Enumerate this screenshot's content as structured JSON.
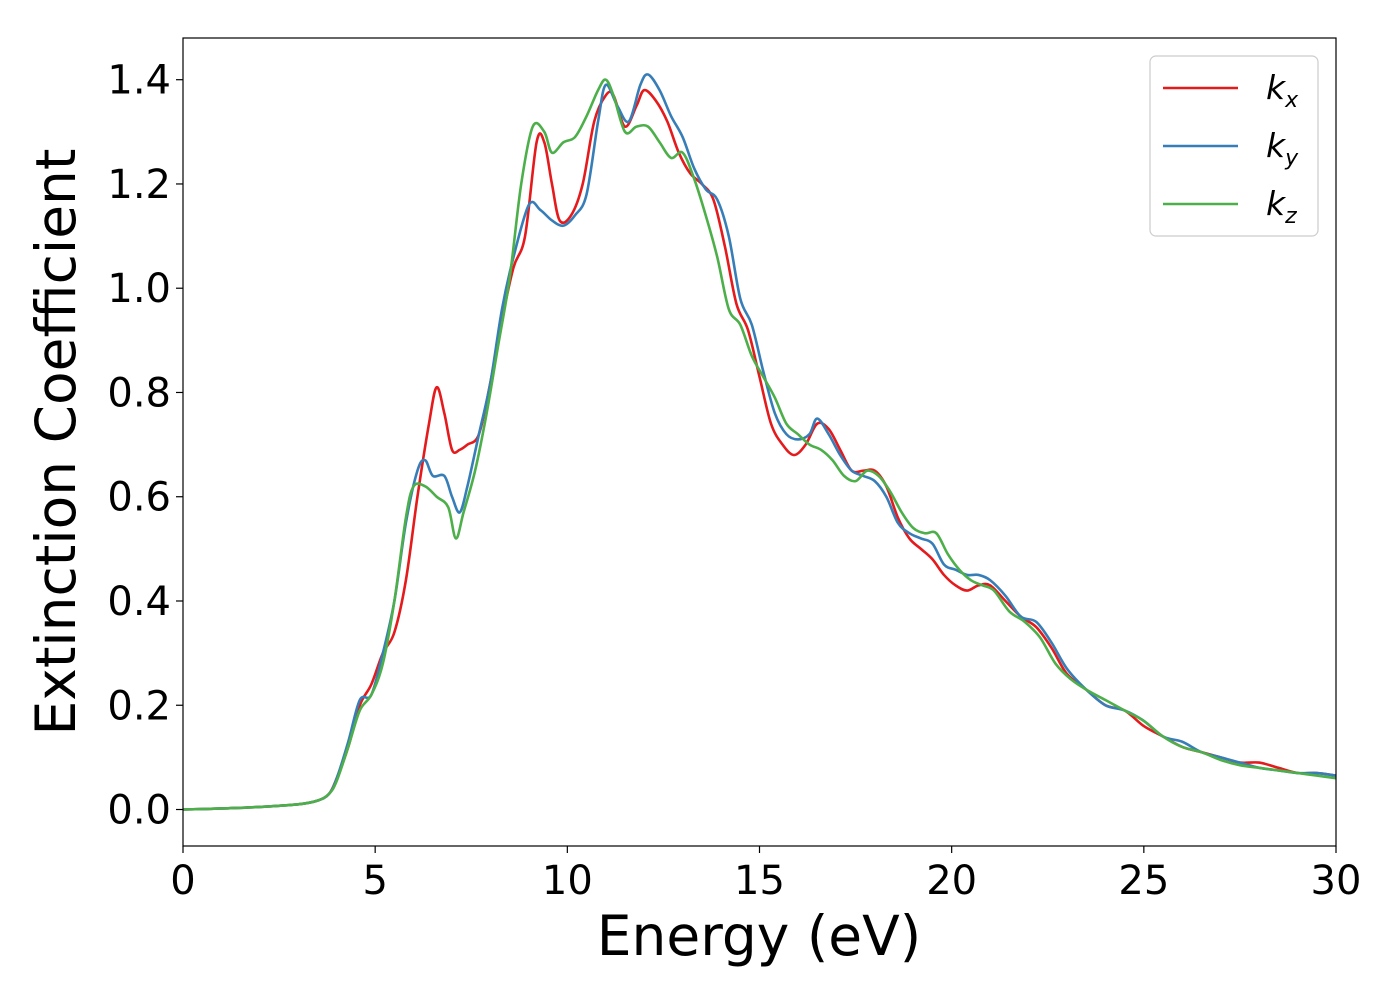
{
  "chart_data": {
    "type": "line",
    "xlabel": "Energy (eV)",
    "ylabel": "Extinction Coefficient",
    "xlim": [
      0,
      30
    ],
    "ylim": [
      -0.07,
      1.48
    ],
    "x_ticks": [
      "0",
      "5",
      "10",
      "15",
      "20",
      "25",
      "30"
    ],
    "y_ticks": [
      "0.0",
      "0.2",
      "0.4",
      "0.6",
      "0.8",
      "1.0",
      "1.2",
      "1.4"
    ],
    "grid": false,
    "legend_position": "top-right",
    "series": [
      {
        "name": "k_x",
        "label_base": "k",
        "label_sub": "x",
        "color": "#e41a1c",
        "points": [
          [
            0,
            0
          ],
          [
            1,
            0.002
          ],
          [
            2,
            0.005
          ],
          [
            3,
            0.01
          ],
          [
            3.5,
            0.017
          ],
          [
            3.8,
            0.03
          ],
          [
            4,
            0.06
          ],
          [
            4.3,
            0.12
          ],
          [
            4.6,
            0.2
          ],
          [
            4.9,
            0.24
          ],
          [
            5.2,
            0.3
          ],
          [
            5.5,
            0.34
          ],
          [
            5.8,
            0.44
          ],
          [
            6.1,
            0.6
          ],
          [
            6.4,
            0.74
          ],
          [
            6.6,
            0.81
          ],
          [
            6.8,
            0.76
          ],
          [
            7,
            0.69
          ],
          [
            7.2,
            0.69
          ],
          [
            7.4,
            0.7
          ],
          [
            7.7,
            0.72
          ],
          [
            8,
            0.82
          ],
          [
            8.3,
            0.94
          ],
          [
            8.6,
            1.04
          ],
          [
            8.9,
            1.1
          ],
          [
            9.2,
            1.28
          ],
          [
            9.4,
            1.28
          ],
          [
            9.6,
            1.2
          ],
          [
            9.8,
            1.13
          ],
          [
            10.1,
            1.14
          ],
          [
            10.4,
            1.2
          ],
          [
            10.7,
            1.32
          ],
          [
            11,
            1.37
          ],
          [
            11.2,
            1.37
          ],
          [
            11.5,
            1.31
          ],
          [
            11.8,
            1.35
          ],
          [
            12,
            1.38
          ],
          [
            12.3,
            1.36
          ],
          [
            12.6,
            1.32
          ],
          [
            12.9,
            1.26
          ],
          [
            13.2,
            1.22
          ],
          [
            13.5,
            1.2
          ],
          [
            13.8,
            1.17
          ],
          [
            14.1,
            1.08
          ],
          [
            14.4,
            0.97
          ],
          [
            14.7,
            0.92
          ],
          [
            15,
            0.83
          ],
          [
            15.3,
            0.74
          ],
          [
            15.6,
            0.7
          ],
          [
            15.9,
            0.68
          ],
          [
            16.2,
            0.7
          ],
          [
            16.5,
            0.74
          ],
          [
            16.8,
            0.73
          ],
          [
            17.1,
            0.69
          ],
          [
            17.4,
            0.65
          ],
          [
            17.7,
            0.65
          ],
          [
            18,
            0.65
          ],
          [
            18.3,
            0.62
          ],
          [
            18.6,
            0.56
          ],
          [
            18.9,
            0.52
          ],
          [
            19.2,
            0.5
          ],
          [
            19.5,
            0.48
          ],
          [
            19.8,
            0.45
          ],
          [
            20.1,
            0.43
          ],
          [
            20.4,
            0.42
          ],
          [
            20.7,
            0.43
          ],
          [
            21,
            0.43
          ],
          [
            21.4,
            0.4
          ],
          [
            21.8,
            0.37
          ],
          [
            22.2,
            0.35
          ],
          [
            22.6,
            0.31
          ],
          [
            23,
            0.26
          ],
          [
            23.5,
            0.23
          ],
          [
            24,
            0.2
          ],
          [
            24.5,
            0.19
          ],
          [
            25,
            0.16
          ],
          [
            25.5,
            0.14
          ],
          [
            26,
            0.12
          ],
          [
            26.5,
            0.11
          ],
          [
            27,
            0.1
          ],
          [
            27.5,
            0.09
          ],
          [
            28,
            0.09
          ],
          [
            28.5,
            0.08
          ],
          [
            29,
            0.07
          ],
          [
            29.5,
            0.07
          ],
          [
            30,
            0.065
          ]
        ]
      },
      {
        "name": "k_y",
        "label_base": "k",
        "label_sub": "y",
        "color": "#377eb8",
        "points": [
          [
            0,
            0
          ],
          [
            1,
            0.002
          ],
          [
            2,
            0.005
          ],
          [
            3,
            0.01
          ],
          [
            3.5,
            0.017
          ],
          [
            3.8,
            0.03
          ],
          [
            4,
            0.06
          ],
          [
            4.3,
            0.13
          ],
          [
            4.6,
            0.21
          ],
          [
            4.9,
            0.22
          ],
          [
            5.2,
            0.3
          ],
          [
            5.5,
            0.4
          ],
          [
            5.8,
            0.55
          ],
          [
            6.1,
            0.65
          ],
          [
            6.3,
            0.67
          ],
          [
            6.5,
            0.64
          ],
          [
            6.8,
            0.64
          ],
          [
            7,
            0.6
          ],
          [
            7.2,
            0.57
          ],
          [
            7.4,
            0.62
          ],
          [
            7.7,
            0.72
          ],
          [
            8,
            0.82
          ],
          [
            8.3,
            0.96
          ],
          [
            8.6,
            1.06
          ],
          [
            9,
            1.16
          ],
          [
            9.3,
            1.15
          ],
          [
            9.6,
            1.13
          ],
          [
            9.9,
            1.12
          ],
          [
            10.2,
            1.14
          ],
          [
            10.5,
            1.18
          ],
          [
            10.8,
            1.32
          ],
          [
            11,
            1.39
          ],
          [
            11.3,
            1.35
          ],
          [
            11.6,
            1.32
          ],
          [
            11.9,
            1.39
          ],
          [
            12.1,
            1.41
          ],
          [
            12.4,
            1.38
          ],
          [
            12.7,
            1.33
          ],
          [
            13,
            1.29
          ],
          [
            13.3,
            1.23
          ],
          [
            13.6,
            1.19
          ],
          [
            13.9,
            1.17
          ],
          [
            14.2,
            1.1
          ],
          [
            14.5,
            0.98
          ],
          [
            14.8,
            0.93
          ],
          [
            15.1,
            0.84
          ],
          [
            15.4,
            0.76
          ],
          [
            15.7,
            0.72
          ],
          [
            16,
            0.71
          ],
          [
            16.3,
            0.72
          ],
          [
            16.5,
            0.75
          ],
          [
            16.8,
            0.72
          ],
          [
            17.1,
            0.68
          ],
          [
            17.4,
            0.65
          ],
          [
            17.7,
            0.64
          ],
          [
            18,
            0.63
          ],
          [
            18.3,
            0.6
          ],
          [
            18.6,
            0.55
          ],
          [
            18.9,
            0.53
          ],
          [
            19.2,
            0.52
          ],
          [
            19.5,
            0.51
          ],
          [
            19.8,
            0.47
          ],
          [
            20.1,
            0.46
          ],
          [
            20.4,
            0.45
          ],
          [
            20.7,
            0.45
          ],
          [
            21,
            0.44
          ],
          [
            21.4,
            0.41
          ],
          [
            21.8,
            0.37
          ],
          [
            22.2,
            0.36
          ],
          [
            22.6,
            0.32
          ],
          [
            23,
            0.27
          ],
          [
            23.5,
            0.23
          ],
          [
            24,
            0.2
          ],
          [
            24.5,
            0.19
          ],
          [
            25,
            0.17
          ],
          [
            25.5,
            0.14
          ],
          [
            26,
            0.13
          ],
          [
            26.5,
            0.11
          ],
          [
            27,
            0.1
          ],
          [
            27.5,
            0.09
          ],
          [
            28,
            0.08
          ],
          [
            28.5,
            0.075
          ],
          [
            29,
            0.07
          ],
          [
            29.5,
            0.07
          ],
          [
            30,
            0.065
          ]
        ]
      },
      {
        "name": "k_z",
        "label_base": "k",
        "label_sub": "z",
        "color": "#4daf4a",
        "points": [
          [
            0,
            0
          ],
          [
            1,
            0.002
          ],
          [
            2,
            0.005
          ],
          [
            3,
            0.01
          ],
          [
            3.5,
            0.017
          ],
          [
            3.8,
            0.03
          ],
          [
            4,
            0.055
          ],
          [
            4.3,
            0.12
          ],
          [
            4.6,
            0.19
          ],
          [
            4.9,
            0.22
          ],
          [
            5.2,
            0.28
          ],
          [
            5.5,
            0.4
          ],
          [
            5.8,
            0.56
          ],
          [
            6,
            0.62
          ],
          [
            6.3,
            0.62
          ],
          [
            6.6,
            0.6
          ],
          [
            6.9,
            0.58
          ],
          [
            7.1,
            0.52
          ],
          [
            7.3,
            0.57
          ],
          [
            7.6,
            0.65
          ],
          [
            7.9,
            0.76
          ],
          [
            8.2,
            0.89
          ],
          [
            8.5,
            1.02
          ],
          [
            8.8,
            1.2
          ],
          [
            9.1,
            1.31
          ],
          [
            9.4,
            1.3
          ],
          [
            9.6,
            1.26
          ],
          [
            9.9,
            1.28
          ],
          [
            10.2,
            1.29
          ],
          [
            10.5,
            1.33
          ],
          [
            10.8,
            1.38
          ],
          [
            11,
            1.4
          ],
          [
            11.2,
            1.37
          ],
          [
            11.5,
            1.3
          ],
          [
            11.8,
            1.31
          ],
          [
            12.1,
            1.31
          ],
          [
            12.4,
            1.28
          ],
          [
            12.7,
            1.25
          ],
          [
            13,
            1.26
          ],
          [
            13.3,
            1.21
          ],
          [
            13.6,
            1.14
          ],
          [
            13.9,
            1.06
          ],
          [
            14.2,
            0.96
          ],
          [
            14.5,
            0.93
          ],
          [
            14.8,
            0.87
          ],
          [
            15.1,
            0.83
          ],
          [
            15.4,
            0.79
          ],
          [
            15.7,
            0.74
          ],
          [
            16,
            0.72
          ],
          [
            16.3,
            0.7
          ],
          [
            16.6,
            0.69
          ],
          [
            16.9,
            0.67
          ],
          [
            17.2,
            0.64
          ],
          [
            17.5,
            0.63
          ],
          [
            17.8,
            0.65
          ],
          [
            18.1,
            0.64
          ],
          [
            18.4,
            0.61
          ],
          [
            18.7,
            0.57
          ],
          [
            19,
            0.54
          ],
          [
            19.3,
            0.53
          ],
          [
            19.6,
            0.53
          ],
          [
            19.9,
            0.49
          ],
          [
            20.2,
            0.46
          ],
          [
            20.5,
            0.44
          ],
          [
            20.8,
            0.43
          ],
          [
            21.1,
            0.42
          ],
          [
            21.5,
            0.38
          ],
          [
            21.9,
            0.36
          ],
          [
            22.3,
            0.33
          ],
          [
            22.7,
            0.28
          ],
          [
            23.1,
            0.25
          ],
          [
            23.5,
            0.23
          ],
          [
            24,
            0.21
          ],
          [
            24.5,
            0.19
          ],
          [
            25,
            0.17
          ],
          [
            25.5,
            0.14
          ],
          [
            26,
            0.12
          ],
          [
            26.5,
            0.11
          ],
          [
            27,
            0.095
          ],
          [
            27.5,
            0.085
          ],
          [
            28,
            0.08
          ],
          [
            28.5,
            0.075
          ],
          [
            29,
            0.07
          ],
          [
            29.5,
            0.065
          ],
          [
            30,
            0.06
          ]
        ]
      }
    ]
  }
}
